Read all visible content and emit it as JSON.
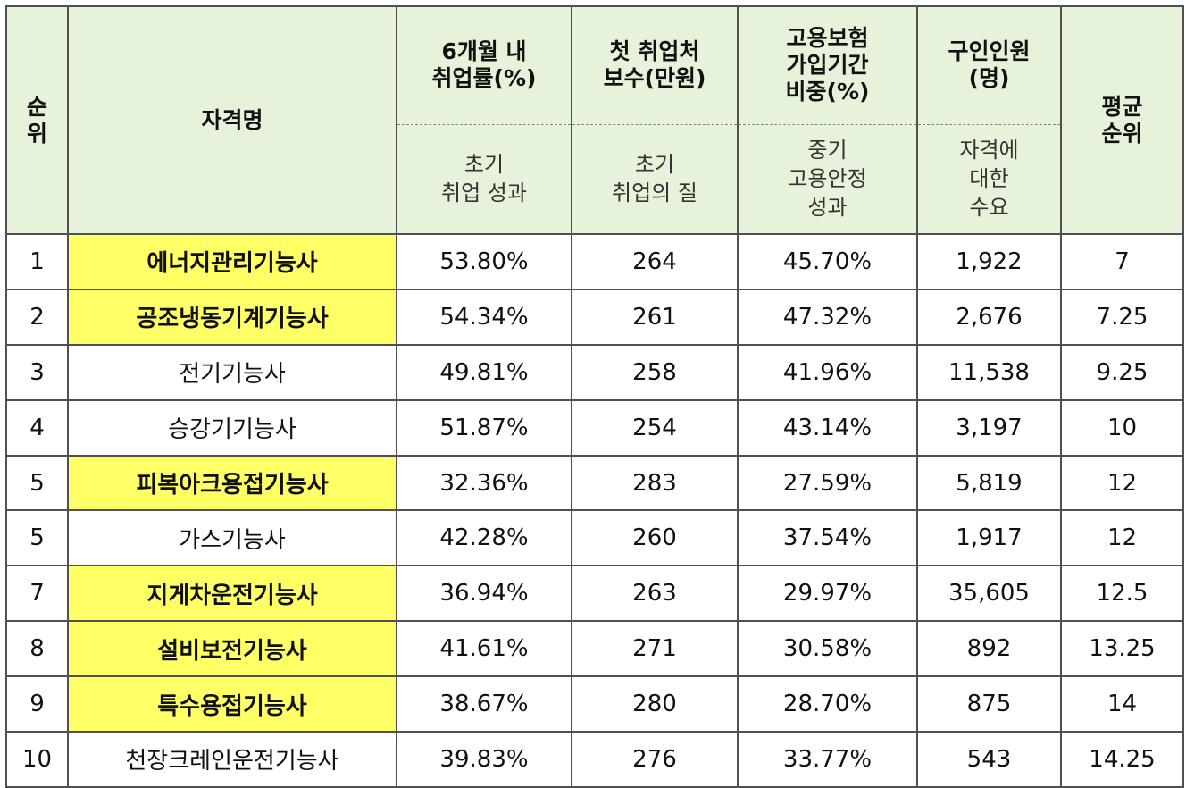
{
  "header": {
    "rank": "순\n위",
    "name": "자격명",
    "col1_title": "6개월 내\n취업률(%)",
    "col1_sub": "초기\n취업 성과",
    "col2_title": "첫 취업처\n보수(만원)",
    "col2_sub": "초기\n취업의 질",
    "col3_title": "고용보험\n가입기간\n비중(%)",
    "col3_sub": "중기\n고용안정\n성과",
    "col4_title": "구인인원\n(명)",
    "col4_sub": "자격에\n대한\n수요",
    "avg": "평균\n순위"
  },
  "rows": [
    {
      "rank": "1",
      "name": "에너지관리기능사",
      "rate": "53.80%",
      "pay": "264",
      "ins": "45.70%",
      "jobs": "1,922",
      "avg": "7",
      "highlight": true
    },
    {
      "rank": "2",
      "name": "공조냉동기계기능사",
      "rate": "54.34%",
      "pay": "261",
      "ins": "47.32%",
      "jobs": "2,676",
      "avg": "7.25",
      "highlight": true
    },
    {
      "rank": "3",
      "name": "전기기능사",
      "rate": "49.81%",
      "pay": "258",
      "ins": "41.96%",
      "jobs": "11,538",
      "avg": "9.25",
      "highlight": false
    },
    {
      "rank": "4",
      "name": "승강기기능사",
      "rate": "51.87%",
      "pay": "254",
      "ins": "43.14%",
      "jobs": "3,197",
      "avg": "10",
      "highlight": false
    },
    {
      "rank": "5",
      "name": "피복아크용접기능사",
      "rate": "32.36%",
      "pay": "283",
      "ins": "27.59%",
      "jobs": "5,819",
      "avg": "12",
      "highlight": true
    },
    {
      "rank": "5",
      "name": "가스기능사",
      "rate": "42.28%",
      "pay": "260",
      "ins": "37.54%",
      "jobs": "1,917",
      "avg": "12",
      "highlight": false
    },
    {
      "rank": "7",
      "name": "지게차운전기능사",
      "rate": "36.94%",
      "pay": "263",
      "ins": "29.97%",
      "jobs": "35,605",
      "avg": "12.5",
      "highlight": true
    },
    {
      "rank": "8",
      "name": "설비보전기능사",
      "rate": "41.61%",
      "pay": "271",
      "ins": "30.58%",
      "jobs": "892",
      "avg": "13.25",
      "highlight": true
    },
    {
      "rank": "9",
      "name": "특수용접기능사",
      "rate": "38.67%",
      "pay": "280",
      "ins": "28.70%",
      "jobs": "875",
      "avg": "14",
      "highlight": true
    },
    {
      "rank": "10",
      "name": "천장크레인운전기능사",
      "rate": "39.83%",
      "pay": "276",
      "ins": "33.77%",
      "jobs": "543",
      "avg": "14.25",
      "highlight": false
    }
  ],
  "colors": {
    "header_bg": "#e6f2d9",
    "highlight_bg": "#ffff66",
    "border": "#505050"
  }
}
